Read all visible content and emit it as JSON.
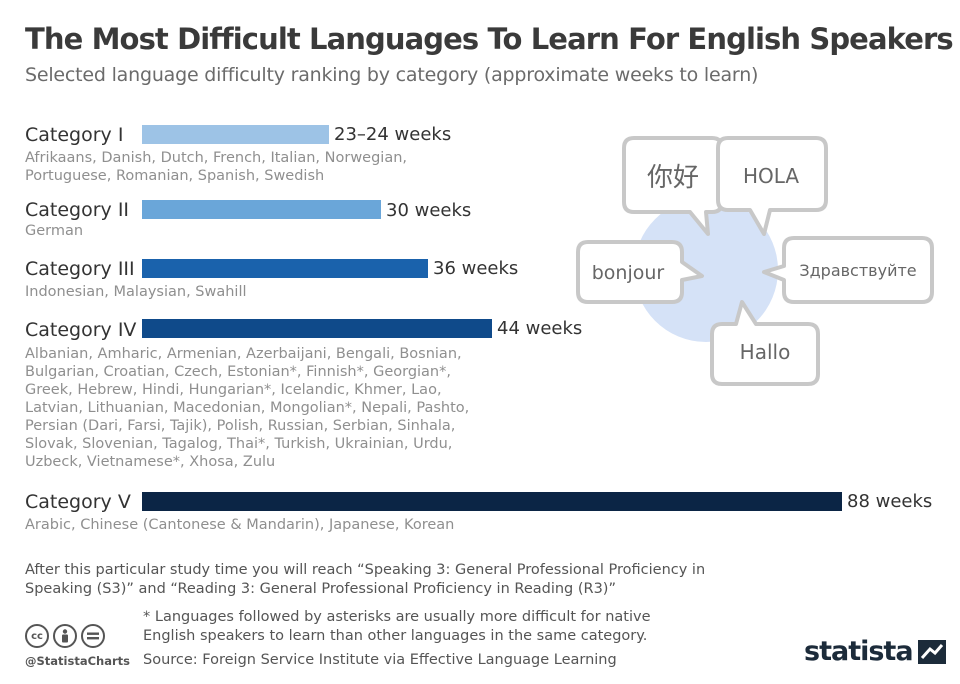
{
  "title": "The Most Difficult Languages To Learn For English Speakers",
  "subtitle": "Selected language difficulty ranking by category (approximate weeks to learn)",
  "chart_data": {
    "type": "bar",
    "orientation": "horizontal",
    "categories": [
      "Category I",
      "Category II",
      "Category III",
      "Category IV",
      "Category V"
    ],
    "values": [
      23.5,
      30,
      36,
      44,
      88
    ],
    "value_labels": [
      "23–24 weeks",
      "30 weeks",
      "36 weeks",
      "44 weeks",
      "88 weeks"
    ],
    "colors": [
      "#9dc3e6",
      "#6aa6d9",
      "#1a62ac",
      "#0f4a8a",
      "#0b2545"
    ],
    "languages": [
      "Afrikaans, Danish, Dutch, French, Italian, Norwegian,\nPortuguese, Romanian, Spanish, Swedish",
      "German",
      "Indonesian, Malaysian, Swahill",
      "Albanian, Amharic, Armenian, Azerbaijani, Bengali, Bosnian,\nBulgarian, Croatian, Czech, Estonian*, Finnish*, Georgian*,\nGreek, Hebrew, Hindi, Hungarian*, Icelandic, Khmer, Lao,\nLatvian, Lithuanian, Macedonian, Mongolian*, Nepali, Pashto,\nPersian (Dari, Farsi, Tajik), Polish, Russian, Serbian, Sinhala,\nSlovak, Slovenian, Tagalog, Thai*, Turkish, Ukrainian, Urdu,\nUzbeck, Vietnamese*, Xhosa, Zulu",
      "Arabic, Chinese (Cantonese & Mandarin), Japanese, Korean"
    ],
    "xlim": [
      0,
      88
    ]
  },
  "illustration": {
    "bubbles": [
      "你好",
      "HOLA",
      "bonjour",
      "Здравствуйте",
      "Hallo"
    ]
  },
  "footnotes": {
    "main": "After this particular study time you will reach “Speaking 3: General Professional Proficiency in Speaking (S3)” and “Reading 3: General Professional Proficiency in Reading (R3)”",
    "asterisk": "* Languages followed by asterisks are usually more difficult for native English speakers to learn than other languages in the same category.",
    "source": "Source: Foreign Service Institute via Effective Language Learning"
  },
  "branding": {
    "handle": "@StatistaCharts",
    "name": "statista"
  }
}
